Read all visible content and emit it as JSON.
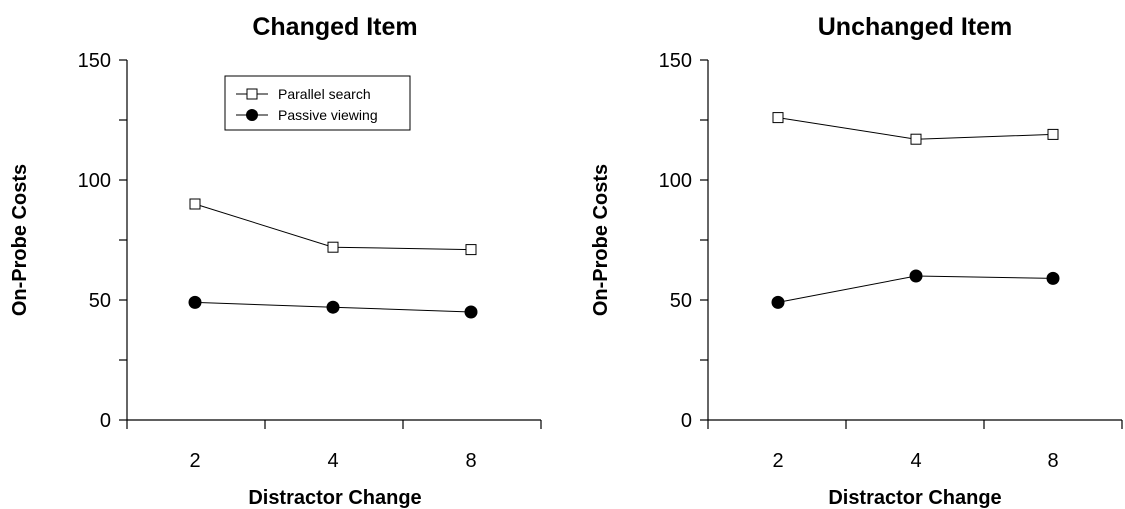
{
  "chart_data": [
    {
      "type": "line",
      "title": "Changed Item",
      "xlabel": "Distractor Change",
      "ylabel": "On-Probe Costs",
      "categories": [
        "2",
        "4",
        "8"
      ],
      "ylim": [
        0,
        150
      ],
      "yticks": [
        0,
        50,
        100,
        150
      ],
      "grid": false,
      "legend": "top-left",
      "series": [
        {
          "name": "Parallel search",
          "marker": "open-square",
          "values": [
            90,
            72,
            71
          ]
        },
        {
          "name": "Passive viewing",
          "marker": "filled-circle",
          "values": [
            49,
            47,
            45
          ]
        }
      ]
    },
    {
      "type": "line",
      "title": "Unchanged Item",
      "xlabel": "Distractor Change",
      "ylabel": "On-Probe Costs",
      "categories": [
        "2",
        "4",
        "8"
      ],
      "ylim": [
        0,
        150
      ],
      "yticks": [
        0,
        50,
        100,
        150
      ],
      "grid": false,
      "legend": "none",
      "series": [
        {
          "name": "Parallel search",
          "marker": "open-square",
          "values": [
            126,
            117,
            119
          ]
        },
        {
          "name": "Passive viewing",
          "marker": "filled-circle",
          "values": [
            49,
            60,
            59
          ]
        }
      ]
    }
  ]
}
